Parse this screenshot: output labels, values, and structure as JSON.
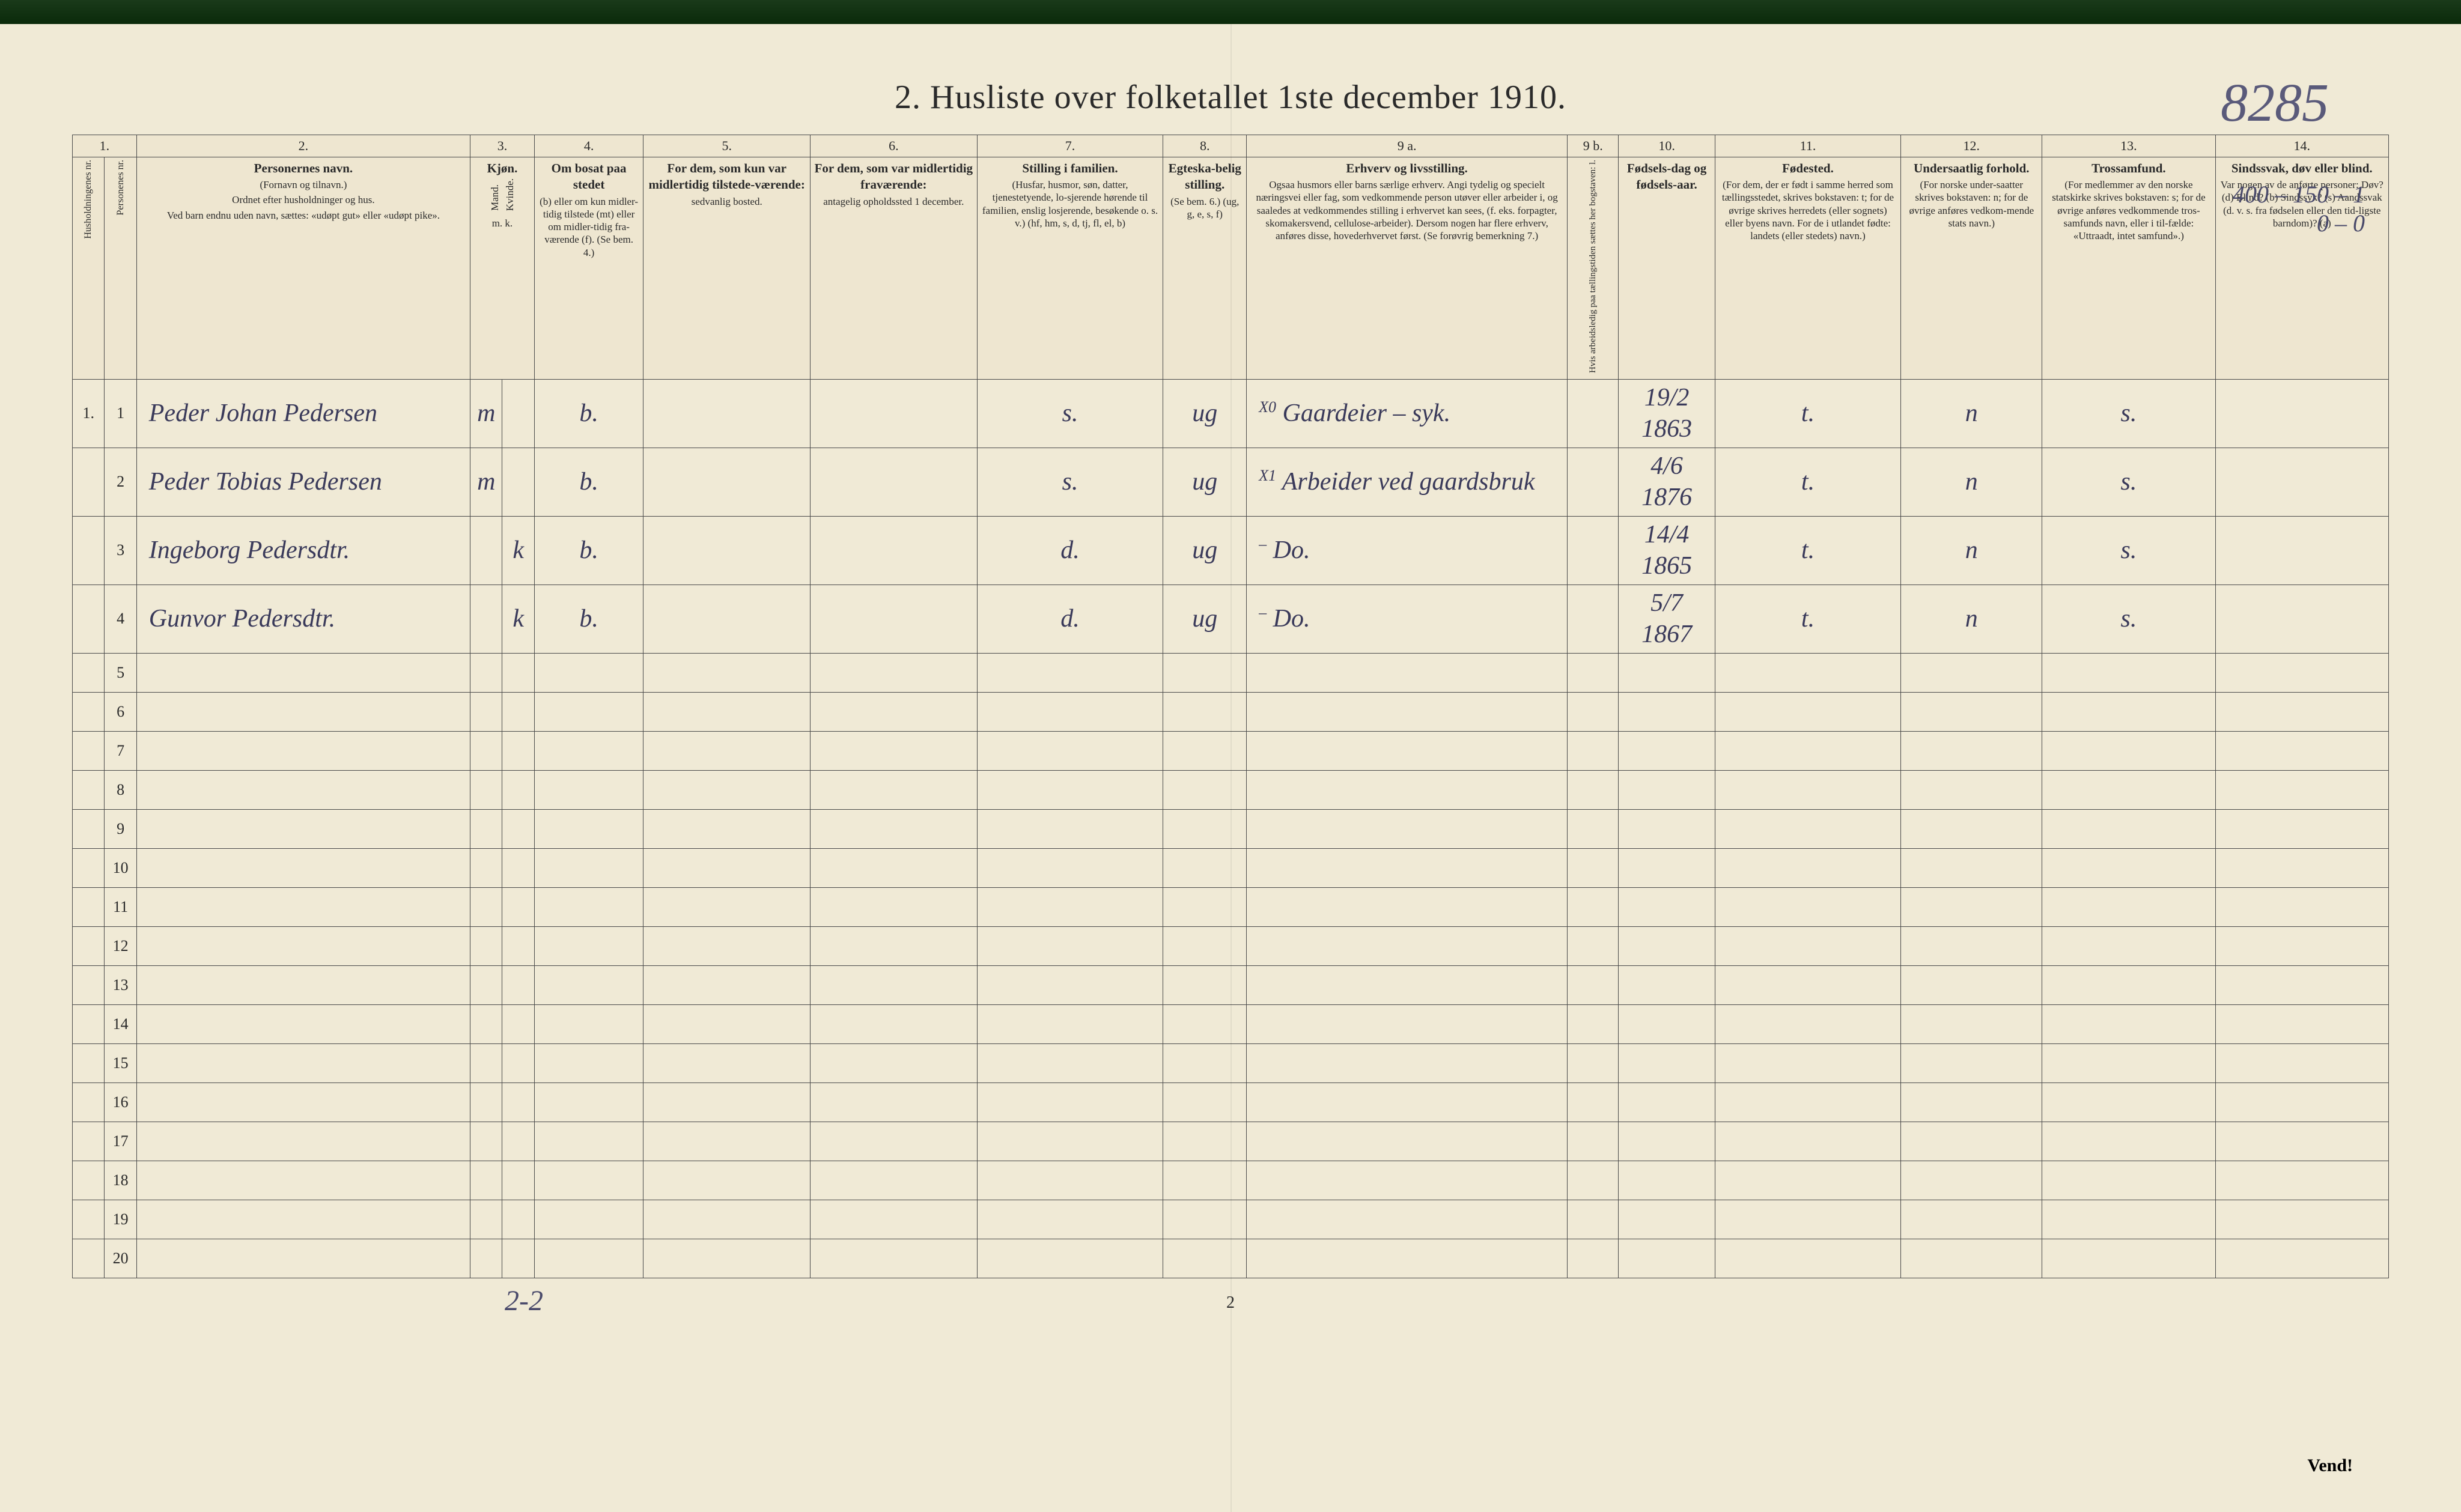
{
  "document": {
    "title": "2.  Husliste over folketallet 1ste december 1910.",
    "page_ref": "8285",
    "top_right_lines": [
      "400 – 150 – 1",
      "0 – 0"
    ],
    "footer_page_num": "2",
    "vend": "Vend!",
    "bottom_tally": "2-2"
  },
  "colors": {
    "paper": "#f0ead6",
    "ink_print": "#2a2a2a",
    "ink_handwriting": "#3a3a5a",
    "rule_line": "#4a4a4a",
    "top_bar": "#0a2a0a"
  },
  "columns": {
    "numbers": [
      "1.",
      "2.",
      "3.",
      "4.",
      "5.",
      "6.",
      "7.",
      "8.",
      "9 a.",
      "9 b.",
      "10.",
      "11.",
      "12.",
      "13.",
      "14."
    ],
    "h1": {
      "a": "Husholdningenes nr.",
      "b": "Personenes nr."
    },
    "h2": {
      "main": "Personernes navn.",
      "sub1": "(Fornavn og tilnavn.)",
      "sub2": "Ordnet efter husholdninger og hus.",
      "sub3": "Ved barn endnu uden navn, sættes: «udøpt gut» eller «udøpt pike»."
    },
    "h3": {
      "main": "Kjøn.",
      "sub_m": "Mand.",
      "sub_k": "Kvinde.",
      "foot": "m.  k."
    },
    "h4": {
      "main": "Om bosat paa stedet",
      "sub": "(b) eller om kun midler-tidig tilstede (mt) eller om midler-tidig fra-værende (f). (Se bem. 4.)"
    },
    "h5": {
      "main": "For dem, som kun var midlertidig tilstede-værende:",
      "sub": "sedvanlig bosted."
    },
    "h6": {
      "main": "For dem, som var midlertidig fraværende:",
      "sub": "antagelig opholdssted 1 december."
    },
    "h7": {
      "main": "Stilling i familien.",
      "sub": "(Husfar, husmor, søn, datter, tjenestetyende, lo-sjerende hørende til familien, enslig losjerende, besøkende o. s. v.) (hf, hm, s, d, tj, fl, el, b)"
    },
    "h8": {
      "main": "Egteska-belig stilling.",
      "sub": "(Se bem. 6.) (ug, g, e, s, f)"
    },
    "h9a": {
      "main": "Erhverv og livsstilling.",
      "sub": "Ogsaa husmors eller barns særlige erhverv. Angi tydelig og specielt næringsvei eller fag, som vedkommende person utøver eller arbeider i, og saaledes at vedkommendes stilling i erhvervet kan sees, (f. eks. forpagter, skomakersvend, cellulose-arbeider). Dersom nogen har flere erhverv, anføres disse, hovederhvervet først. (Se forøvrig bemerkning 7.)"
    },
    "h9b": {
      "main": "Hvis arbeidsledig paa tællingstiden sættes her bogstaven: l."
    },
    "h10": {
      "main": "Fødsels-dag og fødsels-aar."
    },
    "h11": {
      "main": "Fødested.",
      "sub": "(For dem, der er født i samme herred som tællingsstedet, skrives bokstaven: t; for de øvrige skrives herredets (eller sognets) eller byens navn. For de i utlandet fødte: landets (eller stedets) navn.)"
    },
    "h12": {
      "main": "Undersaatlig forhold.",
      "sub": "(For norske under-saatter skrives bokstaven: n; for de øvrige anføres vedkom-mende stats navn.)"
    },
    "h13": {
      "main": "Trossamfund.",
      "sub": "(For medlemmer av den norske statskirke skrives bokstaven: s; for de øvrige anføres vedkommende tros-samfunds navn, eller i til-fælde: «Uttraadt, intet samfund».)"
    },
    "h14": {
      "main": "Sindssvak, døv eller blind.",
      "sub": "Var nogen av de anførte personer: Døv? (d) Blind? (b) Sindssyk? (s) Aandssvak (d. v. s. fra fødselen eller den tid-ligste barndom)? (a)"
    }
  },
  "rows": [
    {
      "hh": "1.",
      "pn": "1",
      "name": "Peder Johan Pedersen",
      "sex_m": "m",
      "sex_k": "",
      "bosat": "b.",
      "c5": "",
      "c6": "",
      "stilling": "s.",
      "ektesk": "ug",
      "erhverv_mark": "X0",
      "erhverv": "Gaardeier – syk.",
      "c9b": "",
      "fodt": "19/2 1863",
      "fodested": "t.",
      "undersaat": "n",
      "tros": "s.",
      "c14": ""
    },
    {
      "hh": "",
      "pn": "2",
      "name": "Peder Tobias Pedersen",
      "sex_m": "m",
      "sex_k": "",
      "bosat": "b.",
      "c5": "",
      "c6": "",
      "stilling": "s.",
      "ektesk": "ug",
      "erhverv_mark": "X1",
      "erhverv": "Arbeider ved gaardsbruk",
      "c9b": "",
      "fodt": "4/6 1876",
      "fodested": "t.",
      "undersaat": "n",
      "tros": "s.",
      "c14": ""
    },
    {
      "hh": "",
      "pn": "3",
      "name": "Ingeborg Pedersdtr.",
      "sex_m": "",
      "sex_k": "k",
      "bosat": "b.",
      "c5": "",
      "c6": "",
      "stilling": "d.",
      "ektesk": "ug",
      "erhverv_mark": "–",
      "erhverv": "Do.",
      "c9b": "",
      "fodt": "14/4 1865",
      "fodested": "t.",
      "undersaat": "n",
      "tros": "s.",
      "c14": ""
    },
    {
      "hh": "",
      "pn": "4",
      "name": "Gunvor Pedersdtr.",
      "sex_m": "",
      "sex_k": "k",
      "bosat": "b.",
      "c5": "",
      "c6": "",
      "stilling": "d.",
      "ektesk": "ug",
      "erhverv_mark": "–",
      "erhverv": "Do.",
      "c9b": "",
      "fodt": "5/7 1867",
      "fodested": "t.",
      "undersaat": "n",
      "tros": "s.",
      "c14": ""
    }
  ],
  "empty_row_numbers": [
    "5",
    "6",
    "7",
    "8",
    "9",
    "10",
    "11",
    "12",
    "13",
    "14",
    "15",
    "16",
    "17",
    "18",
    "19",
    "20"
  ]
}
